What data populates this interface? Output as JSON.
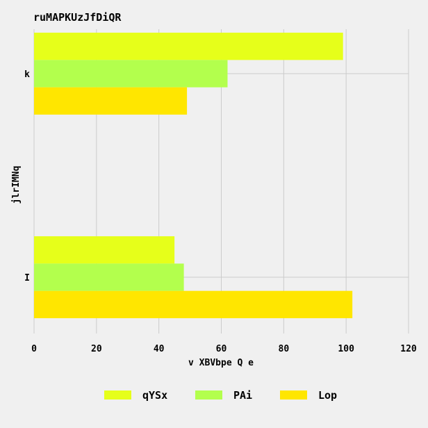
{
  "chart_data": {
    "type": "bar",
    "orientation": "horizontal",
    "title": "ruMAPKUzJfDiQR",
    "xlabel": "v  XBVbpe Q e",
    "ylabel": "jlrIMNq",
    "categories": [
      "k",
      "I"
    ],
    "series": [
      {
        "name": "qYSx",
        "values": [
          99,
          45
        ],
        "color": "#e6ff1a"
      },
      {
        "name": "PAi",
        "values": [
          62,
          48
        ],
        "color": "#b3ff4d"
      },
      {
        "name": "Lop",
        "values": [
          49,
          102
        ],
        "color": "#ffe600"
      }
    ],
    "xlim": [
      0,
      120
    ],
    "xticks": [
      "0",
      "20",
      "40",
      "60",
      "80",
      "100",
      "120"
    ],
    "grid": true,
    "legend": "bottom"
  }
}
